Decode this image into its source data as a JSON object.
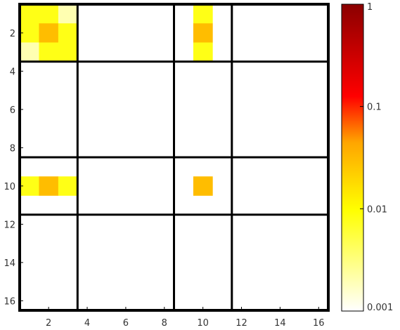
{
  "chart_data": {
    "type": "heatmap",
    "title": "",
    "xlabel": "",
    "ylabel": "",
    "x_range": [
      0.5,
      16.5
    ],
    "y_range": [
      0.5,
      16.5
    ],
    "y_inverted": true,
    "x_ticks": [
      "2",
      "4",
      "6",
      "8",
      "10",
      "12",
      "14",
      "16"
    ],
    "y_ticks": [
      "2",
      "4",
      "6",
      "8",
      "10",
      "12",
      "14",
      "16"
    ],
    "block_boundaries": [
      3.5,
      8.5,
      11.5
    ],
    "cells": [
      {
        "row": 1,
        "col": 1,
        "value": 0.008
      },
      {
        "row": 1,
        "col": 2,
        "value": 0.008
      },
      {
        "row": 1,
        "col": 3,
        "value": 0.002
      },
      {
        "row": 2,
        "col": 1,
        "value": 0.008
      },
      {
        "row": 2,
        "col": 2,
        "value": 0.03
      },
      {
        "row": 2,
        "col": 3,
        "value": 0.008
      },
      {
        "row": 3,
        "col": 1,
        "value": 0.002
      },
      {
        "row": 3,
        "col": 2,
        "value": 0.008
      },
      {
        "row": 3,
        "col": 3,
        "value": 0.008
      },
      {
        "row": 1,
        "col": 10,
        "value": 0.008
      },
      {
        "row": 2,
        "col": 10,
        "value": 0.03
      },
      {
        "row": 3,
        "col": 10,
        "value": 0.008
      },
      {
        "row": 10,
        "col": 1,
        "value": 0.008
      },
      {
        "row": 10,
        "col": 2,
        "value": 0.03
      },
      {
        "row": 10,
        "col": 3,
        "value": 0.008
      },
      {
        "row": 10,
        "col": 10,
        "value": 0.03
      }
    ],
    "colorbar": {
      "scale": "log",
      "min": 0.001,
      "max": 1,
      "tick_values": [
        0.001,
        0.01,
        0.1,
        1
      ],
      "tick_labels": [
        "0.001",
        "0.01",
        "0.1",
        "1"
      ],
      "colormap": "hot_r"
    }
  }
}
